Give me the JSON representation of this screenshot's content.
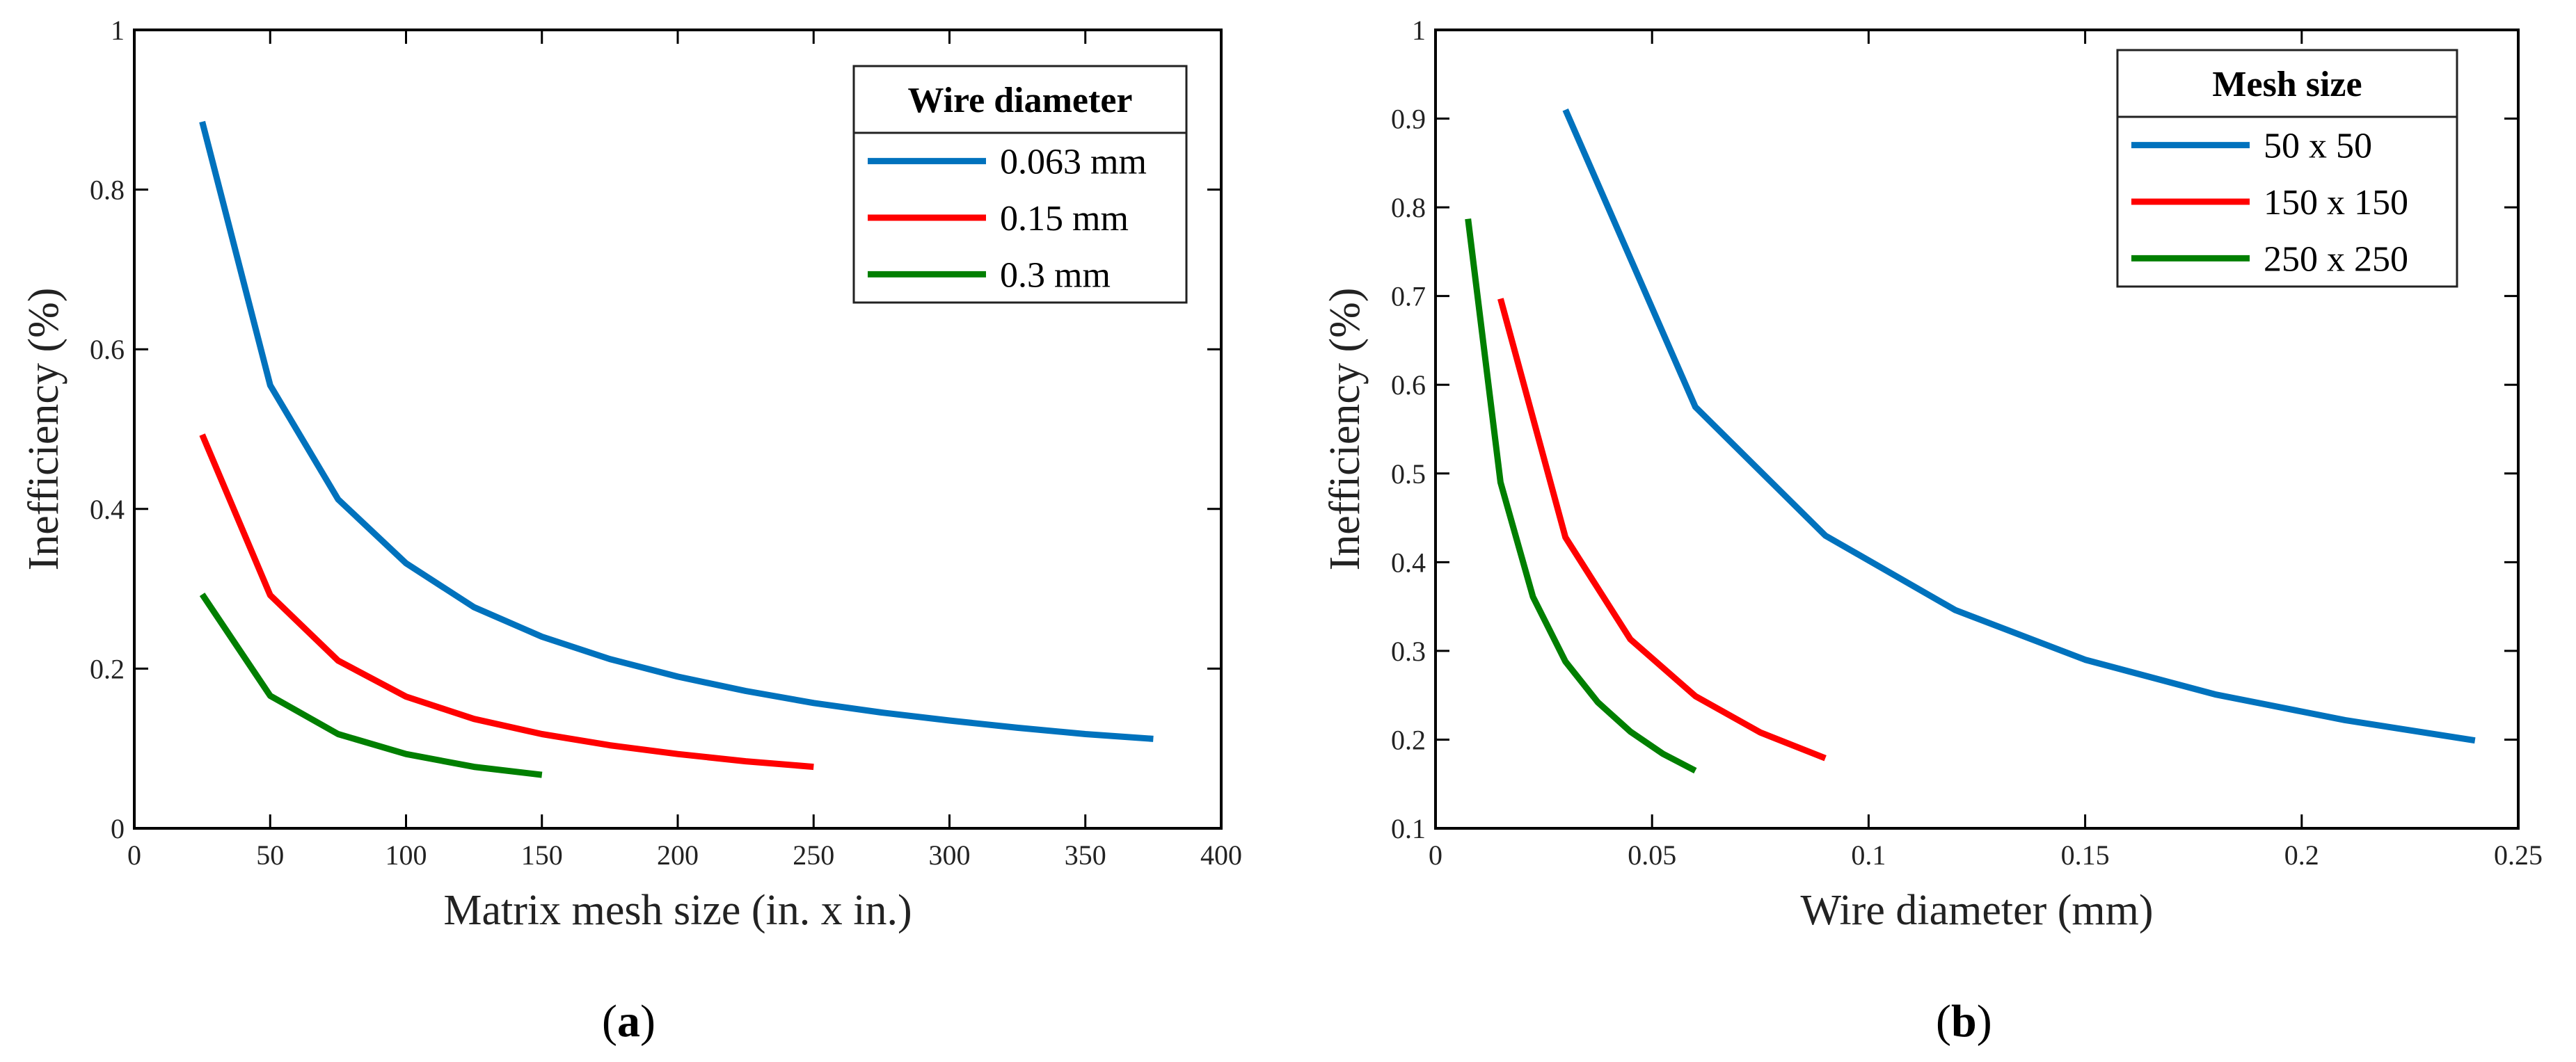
{
  "chart_data": [
    {
      "type": "line",
      "panel_label": "a",
      "title": "",
      "xlabel": "Matrix mesh size (in. x in.)",
      "ylabel": "Inefficiency (%)",
      "xlim": [
        0,
        400
      ],
      "ylim": [
        0,
        1
      ],
      "xticks": [
        0,
        50,
        100,
        150,
        200,
        250,
        300,
        350,
        400
      ],
      "yticks": [
        0,
        0.2,
        0.4,
        0.6,
        0.8,
        1
      ],
      "xtick_labels": [
        "0",
        "50",
        "100",
        "150",
        "200",
        "250",
        "300",
        "350",
        "400"
      ],
      "ytick_labels": [
        "0",
        "0.2",
        "0.4",
        "0.6",
        "0.8",
        "1"
      ],
      "legend": {
        "title": "Wire diameter",
        "position": "top-right"
      },
      "series": [
        {
          "name": "0.063 mm",
          "color": "#0072BD",
          "x": [
            25,
            50,
            75,
            100,
            125,
            150,
            175,
            200,
            225,
            250,
            275,
            300,
            325,
            350,
            375
          ],
          "y": [
            0.885,
            0.555,
            0.412,
            0.332,
            0.277,
            0.24,
            0.212,
            0.19,
            0.172,
            0.157,
            0.145,
            0.135,
            0.126,
            0.118,
            0.112
          ]
        },
        {
          "name": "0.15 mm",
          "color": "#FF0000",
          "x": [
            25,
            50,
            75,
            100,
            125,
            150,
            175,
            200,
            225,
            250
          ],
          "y": [
            0.493,
            0.292,
            0.21,
            0.165,
            0.137,
            0.118,
            0.104,
            0.093,
            0.084,
            0.077
          ]
        },
        {
          "name": "0.3 mm",
          "color": "#007F00",
          "x": [
            25,
            50,
            75,
            100,
            125,
            150
          ],
          "y": [
            0.293,
            0.166,
            0.118,
            0.093,
            0.077,
            0.067
          ]
        }
      ]
    },
    {
      "type": "line",
      "panel_label": "b",
      "title": "",
      "xlabel": "Wire diameter (mm)",
      "ylabel": "Inefficiency (%)",
      "xlim": [
        0,
        0.25
      ],
      "ylim": [
        0.1,
        1
      ],
      "xticks": [
        0,
        0.05,
        0.1,
        0.15,
        0.2,
        0.25
      ],
      "yticks": [
        0.1,
        0.2,
        0.3,
        0.4,
        0.5,
        0.6,
        0.7,
        0.8,
        0.9,
        1
      ],
      "xtick_labels": [
        "0",
        "0.05",
        "0.1",
        "0.15",
        "0.2",
        "0.25"
      ],
      "ytick_labels": [
        "0.1",
        "0.2",
        "0.3",
        "0.4",
        "0.5",
        "0.6",
        "0.7",
        "0.8",
        "0.9",
        "1"
      ],
      "legend": {
        "title": "Mesh size",
        "position": "top-right"
      },
      "series": [
        {
          "name": "50 x 50",
          "color": "#0072BD",
          "x": [
            0.03,
            0.06,
            0.09,
            0.12,
            0.15,
            0.18,
            0.21,
            0.24
          ],
          "y": [
            0.91,
            0.575,
            0.43,
            0.346,
            0.29,
            0.251,
            0.222,
            0.199
          ]
        },
        {
          "name": "150 x 150",
          "color": "#FF0000",
          "x": [
            0.015,
            0.03,
            0.045,
            0.06,
            0.075,
            0.09
          ],
          "y": [
            0.697,
            0.428,
            0.313,
            0.249,
            0.208,
            0.179
          ]
        },
        {
          "name": "250 x 250",
          "color": "#007F00",
          "x": [
            0.0075,
            0.015,
            0.0225,
            0.03,
            0.0375,
            0.045,
            0.0525,
            0.06
          ],
          "y": [
            0.787,
            0.49,
            0.361,
            0.288,
            0.242,
            0.209,
            0.184,
            0.165
          ]
        }
      ]
    }
  ]
}
